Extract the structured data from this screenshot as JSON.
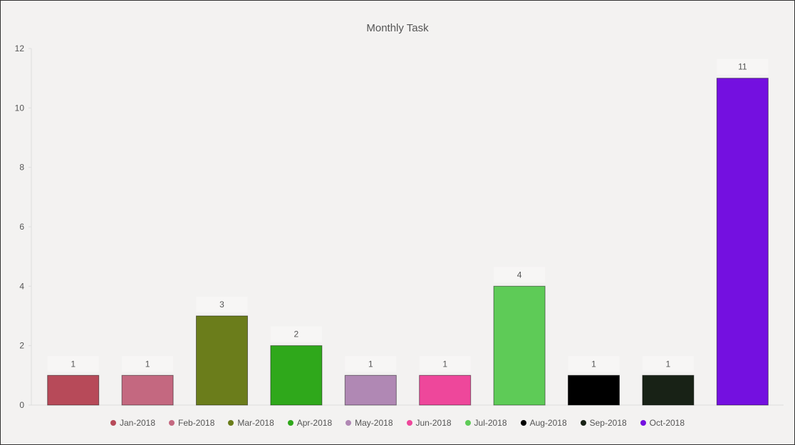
{
  "chart_data": {
    "type": "bar",
    "title": "Monthly Task",
    "categories": [
      "Jan-2018",
      "Feb-2018",
      "Mar-2018",
      "Apr-2018",
      "May-2018",
      "Jun-2018",
      "Jul-2018",
      "Aug-2018",
      "Sep-2018",
      "Oct-2018"
    ],
    "values": [
      1,
      1,
      3,
      2,
      1,
      1,
      4,
      1,
      1,
      11
    ],
    "colors": [
      "#b74a59",
      "#c46880",
      "#6b7d1b",
      "#2fa81b",
      "#b088b4",
      "#ee479b",
      "#5ecb57",
      "#000000",
      "#182216",
      "#7410e0"
    ],
    "ylim": [
      0,
      12
    ],
    "yticks": [
      0,
      2,
      4,
      6,
      8,
      10,
      12
    ],
    "xlabel": "",
    "ylabel": "",
    "legend_position": "bottom",
    "grid": false,
    "data_labels": true
  }
}
